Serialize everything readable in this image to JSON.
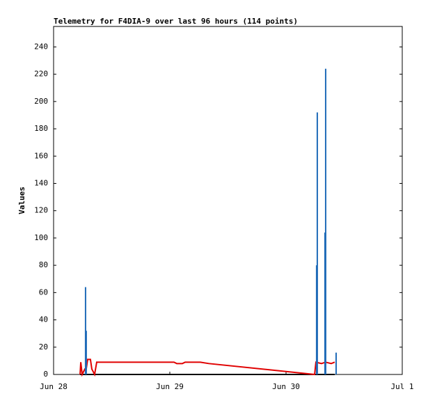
{
  "chart_data": {
    "type": "line",
    "title": "Telemetry for F4DIA-9 over last 96 hours (114 points)",
    "ylabel": "Values",
    "xlim": [
      0,
      3
    ],
    "ylim": [
      0,
      255
    ],
    "xticks": [
      {
        "value": 0,
        "label": "Jun 28"
      },
      {
        "value": 1,
        "label": "Jun 29"
      },
      {
        "value": 2,
        "label": "Jun 30"
      },
      {
        "value": 3,
        "label": "Jul 1"
      }
    ],
    "yticks": [
      0,
      20,
      40,
      60,
      80,
      100,
      120,
      140,
      160,
      180,
      200,
      220,
      240
    ],
    "series": [
      {
        "color": "#000000",
        "style": "line",
        "x": [
          0.228,
          2.419
        ],
        "values": [
          0,
          0
        ]
      },
      {
        "color": "#e00000",
        "style": "line",
        "x": [
          0.228,
          0.234,
          0.246,
          0.269,
          0.281,
          0.293,
          0.317,
          0.329,
          0.353,
          0.371,
          1.036,
          1.06,
          1.108,
          1.132,
          1.263,
          1.335,
          2.246,
          2.257,
          2.305,
          2.341,
          2.389,
          2.419
        ],
        "values": [
          0,
          9,
          0,
          4,
          4,
          11,
          11,
          4,
          0,
          9,
          9,
          8,
          8,
          9,
          9,
          8,
          0,
          9,
          8,
          9,
          8,
          9
        ]
      },
      {
        "color": "#1f6bb8",
        "style": "impulse",
        "x": [
          0.275,
          0.281,
          2.263,
          2.269,
          2.335,
          2.341,
          2.431
        ],
        "values": [
          64,
          32,
          80,
          192,
          104,
          224,
          16
        ]
      }
    ]
  }
}
